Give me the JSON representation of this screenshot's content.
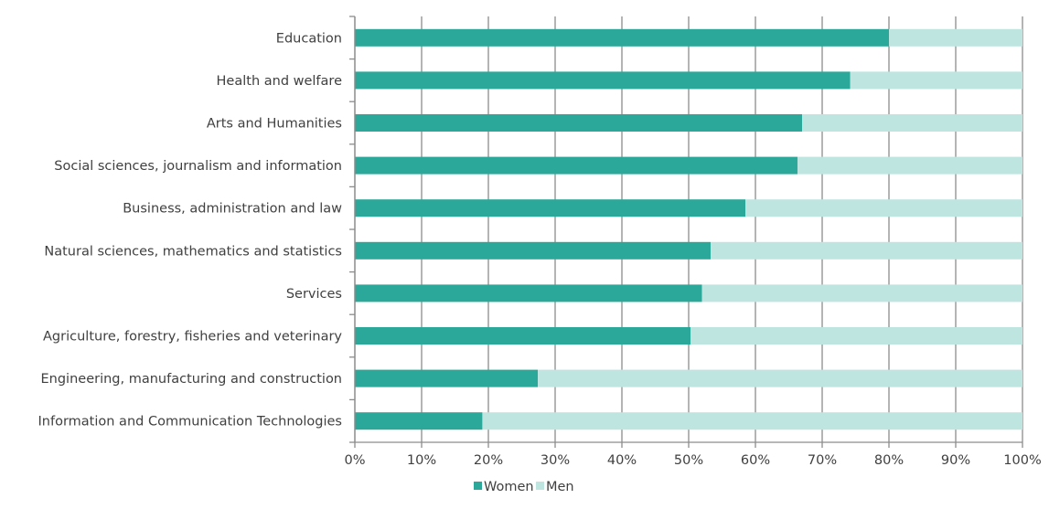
{
  "chart_data": {
    "type": "bar",
    "orientation": "horizontal",
    "stacked": true,
    "categories": [
      "Education",
      "Health and welfare",
      "Arts and Humanities",
      "Social sciences, journalism and information",
      "Business, administration and law",
      "Natural sciences, mathematics and statistics",
      "Services",
      "Agriculture, forestry, fisheries and veterinary",
      "Engineering, manufacturing and construction",
      "Information and Communication Technologies"
    ],
    "series": [
      {
        "name": "Women",
        "color": "#2ca89a",
        "values": [
          80,
          74.2,
          67,
          66.3,
          58.5,
          53.3,
          52,
          50.3,
          27.4,
          19.1
        ]
      },
      {
        "name": "Men",
        "color": "#bfe5e1",
        "values": [
          20,
          25.8,
          33,
          33.7,
          41.5,
          46.7,
          48,
          49.7,
          72.6,
          80.9
        ]
      }
    ],
    "xlim": [
      0,
      100
    ],
    "x_ticks": [
      "0%",
      "10%",
      "20%",
      "30%",
      "40%",
      "50%",
      "60%",
      "70%",
      "80%",
      "90%",
      "100%"
    ],
    "grid": "vertical",
    "legend_position": "bottom"
  }
}
